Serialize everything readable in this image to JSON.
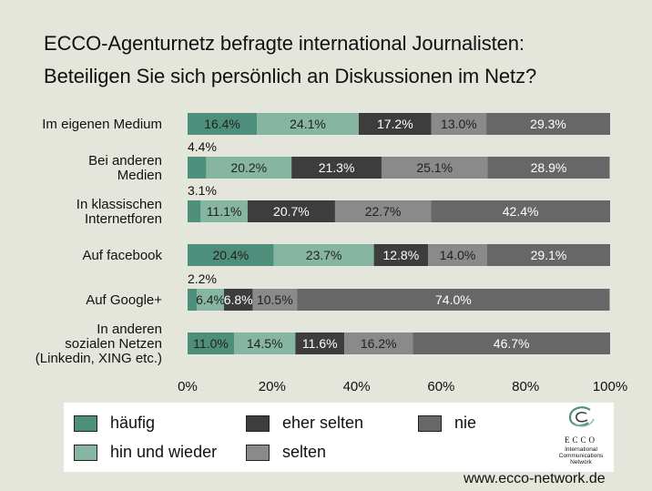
{
  "title_line1": "ECCO-Agenturnetz befragte international Journalisten:",
  "title_line2": "Beteiligen Sie sich persönlich an Diskussionen im Netz?",
  "website": "www.ecco-network.de",
  "logo": {
    "brand": "ECCO",
    "sub": [
      "International",
      "Communications",
      "Network"
    ]
  },
  "colors": {
    "background": "#e4e6dc",
    "haeufig": "#4e8f7b",
    "hin_und_wieder": "#86b5a2",
    "eher_selten": "#3d3d3d",
    "selten": "#8a8a8a",
    "nie": "#676767"
  },
  "legend": [
    {
      "key": "haeufig",
      "label": "häufig"
    },
    {
      "key": "eher_selten",
      "label": "eher selten"
    },
    {
      "key": "nie",
      "label": "nie"
    },
    {
      "key": "hin_und_wieder",
      "label": "hin und wieder"
    },
    {
      "key": "selten",
      "label": "selten"
    }
  ],
  "chart_data": {
    "type": "bar",
    "orientation": "horizontal",
    "stacked": true,
    "title": "ECCO-Agenturnetz befragte international Journalisten: Beteiligen Sie sich persönlich an Diskussionen im Netz?",
    "xlabel": "",
    "ylabel": "",
    "xlim": [
      0,
      100
    ],
    "x_ticks": [
      "0%",
      "20%",
      "40%",
      "60%",
      "80%",
      "100%"
    ],
    "x_tick_values": [
      0,
      20,
      40,
      60,
      80,
      100
    ],
    "legend_position": "bottom",
    "categories": [
      [
        "Im eigenen Medium"
      ],
      [
        "Bei anderen",
        "Medien"
      ],
      [
        "In klassischen",
        "Internetforen"
      ],
      [
        "Auf facebook"
      ],
      [
        "Auf Google+"
      ],
      [
        "In anderen",
        "sozialen Netzen",
        "(Linkedin, XING etc.)"
      ]
    ],
    "series": [
      {
        "key": "haeufig",
        "name": "häufig",
        "values": [
          16.4,
          4.4,
          3.1,
          20.4,
          2.2,
          11.0
        ]
      },
      {
        "key": "hin_und_wieder",
        "name": "hin und wieder",
        "values": [
          24.1,
          20.2,
          11.1,
          23.7,
          6.4,
          14.5
        ]
      },
      {
        "key": "eher_selten",
        "name": "eher selten",
        "values": [
          17.2,
          21.3,
          20.7,
          12.8,
          6.8,
          11.6
        ]
      },
      {
        "key": "selten",
        "name": "selten",
        "values": [
          13.0,
          25.1,
          22.7,
          14.0,
          10.5,
          16.2
        ]
      },
      {
        "key": "nie",
        "name": "nie",
        "values": [
          29.3,
          28.9,
          42.4,
          29.1,
          74.0,
          46.7
        ]
      }
    ],
    "data_labels": [
      [
        "16.4%",
        "24.1%",
        "17.2%",
        "13.0%",
        "29.3%"
      ],
      [
        "4.4%",
        "20.2%",
        "21.3%",
        "25.1%",
        "28.9%"
      ],
      [
        "3.1%",
        "11.1%",
        "20.7%",
        "22.7%",
        "42.4%"
      ],
      [
        "20.4%",
        "23.7%",
        "12.8%",
        "14.0%",
        "29.1%"
      ],
      [
        "2.2%",
        "6.4%",
        "6.8%",
        "10.5%",
        "74.0%"
      ],
      [
        "11.0%",
        "14.5%",
        "11.6%",
        "16.2%",
        "46.7%"
      ]
    ],
    "label_above_bar": [
      false,
      true,
      true,
      false,
      true,
      false
    ]
  }
}
